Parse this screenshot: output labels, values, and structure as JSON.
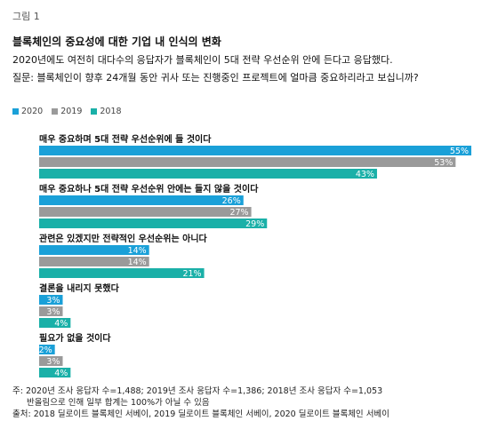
{
  "figure_label": "그림 1",
  "title": "블록체인의 중요성에 대한 기업 내 인식의 변화",
  "subtitle": "2020년에도 여전히 대다수의 응답자가 블록체인이 5대 전략 우선순위 안에 든다고 응답했다.",
  "question": "질문: 블록체인이 향후 24개월 동안 귀사 또는 진행중인 프로젝트에 얼마큼 중요하리라고 보십니까?",
  "colors": {
    "2020": "#1aa0d8",
    "2019": "#9a9a9a",
    "2018": "#1ab0a8"
  },
  "legend": [
    "2020",
    "2019",
    "2018"
  ],
  "chart_data": {
    "type": "bar",
    "orientation": "horizontal",
    "categories": [
      "매우 중요하며 5대 전략 우선순위에 들 것이다",
      "매우 중요하나 5대 전략 우선순위 안에는 들지 않을 것이다",
      "관련은 있겠지만 전략적인 우선순위는 아니다",
      "결론을 내리지 못했다",
      "필요가 없을 것이다"
    ],
    "series": [
      {
        "name": "2020",
        "values": [
          55,
          26,
          14,
          3,
          2
        ]
      },
      {
        "name": "2019",
        "values": [
          53,
          27,
          14,
          3,
          3
        ]
      },
      {
        "name": "2018",
        "values": [
          43,
          29,
          21,
          4,
          4
        ]
      }
    ],
    "value_labels": [
      [
        "55%",
        "26%",
        "14%",
        "3%",
        "2%"
      ],
      [
        "53%",
        "27%",
        "14%",
        "3%",
        "3%"
      ],
      [
        "43%",
        "29%",
        "21%",
        "4%",
        "4%"
      ]
    ],
    "xlim": [
      0,
      55
    ]
  },
  "footnote": {
    "line1": "주: 2020년 조사 응답자 수=1,488; 2019년 조사 응답자 수=1,386; 2018년 조사 응답자 수=1,053",
    "line2": "반올림으로 인해 일부 합계는 100%가 아닐 수 있음",
    "line3": "출처: 2018 딜로이트 블록체인 서베이, 2019 딜로이트 블록체인 서베이, 2020 딜로이트 블록체인 서베이"
  }
}
